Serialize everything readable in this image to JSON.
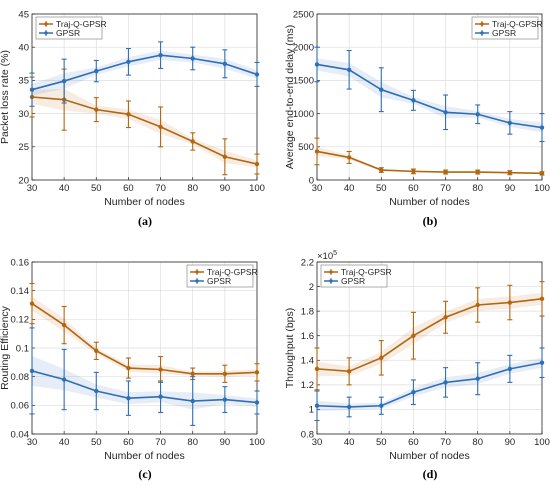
{
  "colors": {
    "traj": "#b3660f",
    "gpsr": "#2f6fb6",
    "grid": "#dedede",
    "axis": "#262626"
  },
  "chart_data": [
    {
      "id": "a",
      "type": "line",
      "caption": "(a)",
      "xlabel": "Number of nodes",
      "ylabel": "Packet loss rate (%)",
      "x": [
        30,
        40,
        50,
        60,
        70,
        80,
        90,
        100
      ],
      "xlim": [
        30,
        100
      ],
      "ylim": [
        20,
        45
      ],
      "xticks": [
        "30",
        "40",
        "50",
        "60",
        "70",
        "80",
        "90",
        "100"
      ],
      "yticks": [
        "20",
        "25",
        "30",
        "35",
        "40",
        "45"
      ],
      "ytick_values": [
        20,
        25,
        30,
        35,
        40,
        45
      ],
      "multiplier": "",
      "legend_position": "top-left",
      "grid": true,
      "series": [
        {
          "name": "Traj-Q-GPSR",
          "color_key": "traj",
          "values": [
            32.5,
            32.1,
            30.6,
            29.9,
            28.0,
            25.8,
            23.5,
            22.4
          ],
          "err": [
            3.0,
            4.6,
            1.8,
            2.0,
            3.0,
            1.3,
            2.7,
            1.5
          ]
        },
        {
          "name": "GPSR",
          "color_key": "gpsr",
          "values": [
            33.6,
            34.9,
            36.4,
            37.8,
            38.8,
            38.3,
            37.5,
            35.9
          ],
          "err": [
            2.5,
            3.3,
            1.6,
            2.0,
            2.0,
            1.7,
            2.1,
            1.8
          ]
        }
      ]
    },
    {
      "id": "b",
      "type": "line",
      "caption": "(b)",
      "xlabel": "Number of nodes",
      "ylabel": "Average end-to-end delay (ms)",
      "x": [
        30,
        40,
        50,
        60,
        70,
        80,
        90,
        100
      ],
      "xlim": [
        30,
        100
      ],
      "ylim": [
        0,
        2500
      ],
      "xticks": [
        "30",
        "40",
        "50",
        "60",
        "70",
        "80",
        "90",
        "100"
      ],
      "yticks": [
        "0",
        "500",
        "1000",
        "1500",
        "2000",
        "2500"
      ],
      "ytick_values": [
        0,
        500,
        1000,
        1500,
        2000,
        2500
      ],
      "multiplier": "",
      "legend_position": "top-right",
      "grid": true,
      "series": [
        {
          "name": "Traj-Q-GPSR",
          "color_key": "traj",
          "values": [
            430,
            340,
            150,
            130,
            120,
            120,
            110,
            100
          ],
          "err": [
            200,
            90,
            35,
            35,
            30,
            30,
            30,
            25
          ]
        },
        {
          "name": "GPSR",
          "color_key": "gpsr",
          "values": [
            1740,
            1660,
            1360,
            1200,
            1020,
            990,
            860,
            790
          ],
          "err": [
            260,
            290,
            330,
            150,
            260,
            140,
            170,
            210
          ]
        }
      ]
    },
    {
      "id": "c",
      "type": "line",
      "caption": "(c)",
      "xlabel": "Number of nodes",
      "ylabel": "Routing Efficiency",
      "x": [
        30,
        40,
        50,
        60,
        70,
        80,
        90,
        100
      ],
      "xlim": [
        30,
        100
      ],
      "ylim": [
        0.04,
        0.16
      ],
      "xticks": [
        "30",
        "40",
        "50",
        "60",
        "70",
        "80",
        "90",
        "100"
      ],
      "yticks": [
        "0.04",
        "0.06",
        "0.08",
        "0.1",
        "0.12",
        "0.14",
        "0.16"
      ],
      "ytick_values": [
        0.04,
        0.06,
        0.08,
        0.1,
        0.12,
        0.14,
        0.16
      ],
      "multiplier": "",
      "legend_position": "top-right",
      "grid": true,
      "series": [
        {
          "name": "Traj-Q-GPSR",
          "color_key": "traj",
          "values": [
            0.131,
            0.116,
            0.098,
            0.086,
            0.085,
            0.082,
            0.082,
            0.083
          ],
          "err": [
            0.014,
            0.013,
            0.006,
            0.007,
            0.009,
            0.004,
            0.006,
            0.006
          ]
        },
        {
          "name": "GPSR",
          "color_key": "gpsr",
          "values": [
            0.084,
            0.078,
            0.07,
            0.065,
            0.066,
            0.063,
            0.064,
            0.062
          ],
          "err": [
            0.03,
            0.021,
            0.013,
            0.012,
            0.011,
            0.017,
            0.009,
            0.008
          ]
        }
      ]
    },
    {
      "id": "d",
      "type": "line",
      "caption": "(d)",
      "xlabel": "Number of nodes",
      "ylabel": "Throughput (bps)",
      "x": [
        30,
        40,
        50,
        60,
        70,
        80,
        90,
        100
      ],
      "xlim": [
        30,
        100
      ],
      "ylim": [
        0.8,
        2.2
      ],
      "xticks": [
        "30",
        "40",
        "50",
        "60",
        "70",
        "80",
        "90",
        "100"
      ],
      "yticks": [
        "0.8",
        "1",
        "1.2",
        "1.4",
        "1.6",
        "1.8",
        "2",
        "2.2"
      ],
      "ytick_values": [
        0.8,
        1.0,
        1.2,
        1.4,
        1.6,
        1.8,
        2.0,
        2.2
      ],
      "multiplier": "×10",
      "multiplier_exp": "5",
      "legend_position": "top-left",
      "grid": true,
      "series": [
        {
          "name": "Traj-Q-GPSR",
          "color_key": "traj",
          "values": [
            1.33,
            1.31,
            1.42,
            1.6,
            1.75,
            1.85,
            1.87,
            1.9
          ],
          "err": [
            0.17,
            0.11,
            0.14,
            0.19,
            0.13,
            0.14,
            0.14,
            0.14
          ]
        },
        {
          "name": "GPSR",
          "color_key": "gpsr",
          "values": [
            1.03,
            1.02,
            1.03,
            1.14,
            1.22,
            1.25,
            1.33,
            1.38
          ],
          "err": [
            0.12,
            0.08,
            0.07,
            0.1,
            0.12,
            0.13,
            0.11,
            0.12
          ]
        }
      ]
    }
  ]
}
